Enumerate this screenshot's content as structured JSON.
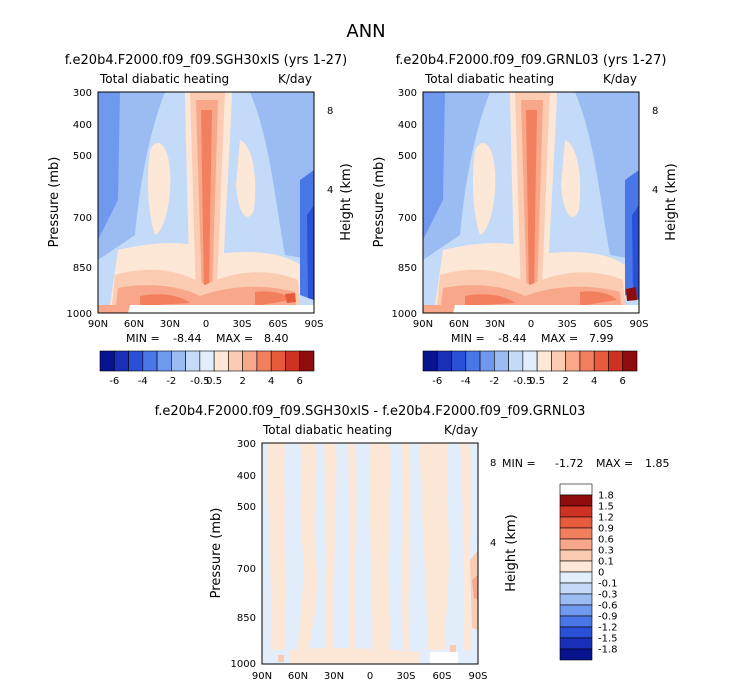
{
  "page_title": "ANN",
  "colors": {
    "cb_main": [
      "#08138f",
      "#1a2fb8",
      "#2b50d8",
      "#4a77e8",
      "#6f98ef",
      "#9bbcf3",
      "#c3dbf8",
      "#e3eefc",
      "#fde7d6",
      "#fbcbb2",
      "#f8a78a",
      "#f2805f",
      "#e75a3b",
      "#cf3222",
      "#8e0c0c"
    ],
    "cb_diff": [
      "#08138f",
      "#1a2fb8",
      "#2b50d8",
      "#4a77e8",
      "#6f98ef",
      "#9bbcf3",
      "#c3dbf8",
      "#e3eefc",
      "#fde7d6",
      "#fbcbb2",
      "#f8a78a",
      "#f2805f",
      "#e75a3b",
      "#cf3222",
      "#8e0c0c"
    ]
  },
  "chart_data": [
    {
      "type": "heatmap",
      "title": "f.e20b4.F2000.f09_f09.SGH30xlS (yrs 1-27)",
      "left_label": "Total diabatic heating",
      "right_label": "K/day",
      "ylabel": "Pressure (mb)",
      "ylabel_right": "Height (km)",
      "x_ticks": [
        "90N",
        "60N",
        "30N",
        "0",
        "30S",
        "60S",
        "90S"
      ],
      "y_ticks": [
        "300",
        "400",
        "500",
        "700",
        "850",
        "1000"
      ],
      "y_ticks_right": [
        "8",
        "4"
      ],
      "min_label": "MIN =",
      "min_value": "-8.44",
      "max_label": "MAX =",
      "max_value": "8.40",
      "colorbar_labels": [
        "-6",
        "-4",
        "-2",
        "-0.5",
        "0.5",
        "2",
        "4",
        "6"
      ]
    },
    {
      "type": "heatmap",
      "title": "f.e20b4.F2000.f09_f09.GRNL03 (yrs 1-27)",
      "left_label": "Total diabatic heating",
      "right_label": "K/day",
      "ylabel": "Pressure (mb)",
      "ylabel_right": "Height (km)",
      "x_ticks": [
        "90N",
        "60N",
        "30N",
        "0",
        "30S",
        "60S",
        "90S"
      ],
      "y_ticks": [
        "300",
        "400",
        "500",
        "700",
        "850",
        "1000"
      ],
      "y_ticks_right": [
        "8",
        "4"
      ],
      "min_label": "MIN =",
      "min_value": "-8.44",
      "max_label": "MAX =",
      "max_value": "7.99",
      "colorbar_labels": [
        "-6",
        "-4",
        "-2",
        "-0.5",
        "0.5",
        "2",
        "4",
        "6"
      ]
    },
    {
      "type": "heatmap",
      "title": "f.e20b4.F2000.f09_f09.SGH30xlS - f.e20b4.F2000.f09_f09.GRNL03",
      "left_label": "Total diabatic heating",
      "right_label": "K/day",
      "ylabel": "Pressure (mb)",
      "ylabel_right": "Height (km)",
      "x_ticks": [
        "90N",
        "60N",
        "30N",
        "0",
        "30S",
        "60S",
        "90S"
      ],
      "y_ticks": [
        "300",
        "400",
        "500",
        "700",
        "850",
        "1000"
      ],
      "y_ticks_right": [
        "8",
        "4"
      ],
      "min_label": "MIN =",
      "min_value": "-1.72",
      "max_label": "MAX =",
      "max_value": "1.85",
      "colorbar_labels": [
        "1.8",
        "1.5",
        "1.2",
        "0.9",
        "0.6",
        "0.3",
        "0.1",
        "0",
        "-0.1",
        "-0.3",
        "-0.6",
        "-0.9",
        "-1.2",
        "-1.5",
        "-1.8"
      ]
    }
  ]
}
